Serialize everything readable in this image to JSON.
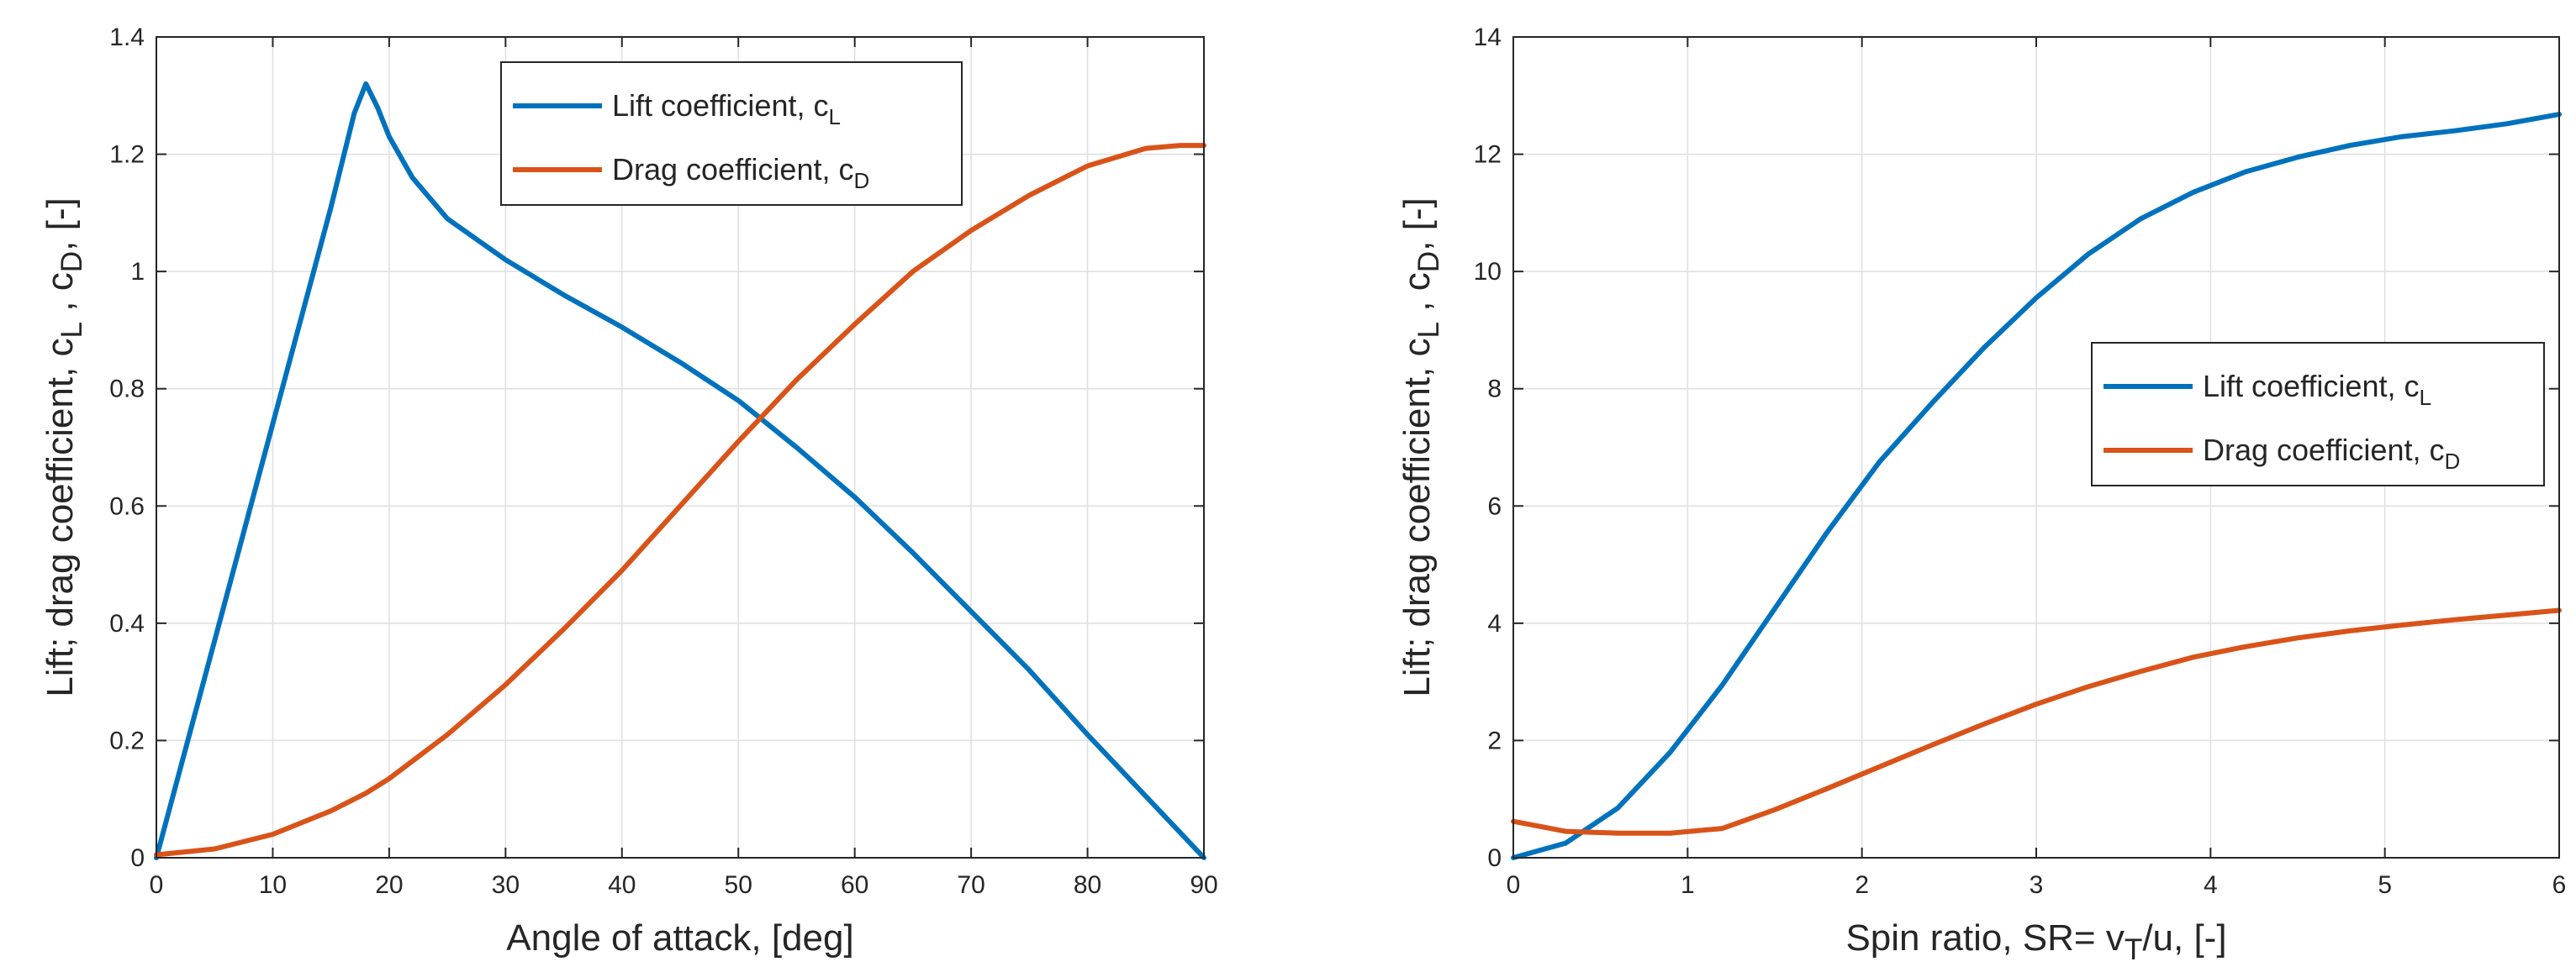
{
  "chart_data": [
    {
      "type": "line",
      "xlabel": "Angle of attack, [deg]",
      "ylabel": {
        "parts": [
          {
            "t": "Lift; drag coefficient, c"
          },
          {
            "t": "L",
            "sub": true
          },
          {
            "t": " , c"
          },
          {
            "t": "D",
            "sub": true
          },
          {
            "t": ", [-]"
          }
        ]
      },
      "xlim": [
        0,
        90
      ],
      "ylim": [
        0,
        1.4
      ],
      "xticks": [
        "0",
        "10",
        "20",
        "30",
        "40",
        "50",
        "60",
        "70",
        "80",
        "90"
      ],
      "yticks": [
        "0",
        "0.2",
        "0.4",
        "0.6",
        "0.8",
        "1",
        "1.2",
        "1.4"
      ],
      "grid": true,
      "legend_position": "top-right",
      "series": [
        {
          "name": "Lift coefficient, c",
          "sub": "L",
          "color": "#0072BD",
          "x": [
            0,
            5,
            10,
            15,
            17,
            18,
            19,
            20,
            22,
            25,
            30,
            35,
            40,
            45,
            50,
            55,
            60,
            65,
            70,
            75,
            80,
            85,
            90
          ],
          "y": [
            0,
            0.37,
            0.74,
            1.11,
            1.27,
            1.32,
            1.28,
            1.23,
            1.16,
            1.09,
            1.02,
            0.96,
            0.905,
            0.845,
            0.78,
            0.7,
            0.615,
            0.52,
            0.42,
            0.32,
            0.21,
            0.105,
            0
          ]
        },
        {
          "name": "Drag coefficient, c",
          "sub": "D",
          "color": "#D95319",
          "x": [
            0,
            5,
            10,
            15,
            18,
            20,
            25,
            30,
            35,
            40,
            45,
            50,
            55,
            60,
            65,
            70,
            75,
            80,
            85,
            88,
            90
          ],
          "y": [
            0.005,
            0.015,
            0.04,
            0.08,
            0.11,
            0.135,
            0.21,
            0.295,
            0.39,
            0.49,
            0.6,
            0.71,
            0.815,
            0.91,
            1.0,
            1.07,
            1.13,
            1.18,
            1.21,
            1.215,
            1.215
          ]
        }
      ]
    },
    {
      "type": "line",
      "xlabel": {
        "parts": [
          {
            "t": "Spin ratio, SR= v"
          },
          {
            "t": "T",
            "sub": true
          },
          {
            "t": "/u, [-]"
          }
        ]
      },
      "ylabel": {
        "parts": [
          {
            "t": "Lift; drag coefficient, c"
          },
          {
            "t": "L",
            "sub": true
          },
          {
            "t": " , c"
          },
          {
            "t": "D",
            "sub": true
          },
          {
            "t": ", [-]"
          }
        ]
      },
      "xlim": [
        0,
        6
      ],
      "ylim": [
        0,
        14
      ],
      "xticks": [
        "0",
        "1",
        "2",
        "3",
        "4",
        "5",
        "6"
      ],
      "yticks": [
        "0",
        "2",
        "4",
        "6",
        "8",
        "10",
        "12",
        "14"
      ],
      "grid": true,
      "legend_position": "center-right",
      "series": [
        {
          "name": "Lift coefficient, c",
          "sub": "L",
          "color": "#0072BD",
          "x": [
            0,
            0.3,
            0.6,
            0.9,
            1.2,
            1.5,
            1.8,
            2.1,
            2.4,
            2.7,
            3.0,
            3.3,
            3.6,
            3.9,
            4.2,
            4.5,
            4.8,
            5.1,
            5.4,
            5.7,
            6.0
          ],
          "y": [
            0,
            0.25,
            0.85,
            1.8,
            2.95,
            4.25,
            5.55,
            6.75,
            7.75,
            8.7,
            9.55,
            10.3,
            10.9,
            11.35,
            11.7,
            11.95,
            12.15,
            12.3,
            12.4,
            12.52,
            12.68
          ]
        },
        {
          "name": "Drag coefficient, c",
          "sub": "D",
          "color": "#D95319",
          "x": [
            0,
            0.3,
            0.6,
            0.9,
            1.2,
            1.5,
            1.8,
            2.1,
            2.4,
            2.7,
            3.0,
            3.3,
            3.6,
            3.9,
            4.2,
            4.5,
            4.8,
            5.1,
            5.4,
            5.7,
            6.0
          ],
          "y": [
            0.62,
            0.45,
            0.42,
            0.42,
            0.5,
            0.82,
            1.18,
            1.55,
            1.92,
            2.28,
            2.62,
            2.92,
            3.18,
            3.42,
            3.6,
            3.75,
            3.87,
            3.97,
            4.06,
            4.14,
            4.22
          ]
        }
      ]
    }
  ]
}
